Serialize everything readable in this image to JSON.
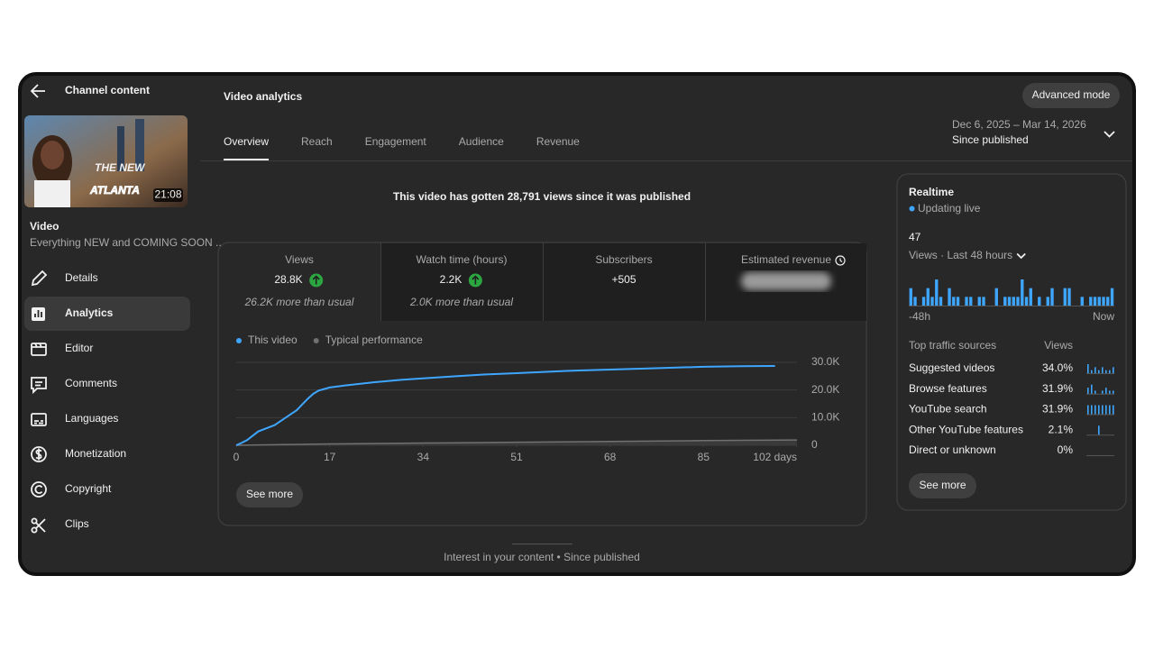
{
  "sidebar": {
    "back_label": "Channel content",
    "thumbnail": {
      "title_lines": [
        "THE NEW",
        "ATLANTA"
      ],
      "duration": "21:08"
    },
    "video_label": "Video",
    "video_title": "Everything NEW and COMING SOON ...",
    "nav": [
      {
        "label": "Details",
        "selected": false
      },
      {
        "label": "Analytics",
        "selected": true
      },
      {
        "label": "Editor",
        "selected": false
      },
      {
        "label": "Comments",
        "selected": false
      },
      {
        "label": "Languages",
        "selected": false
      },
      {
        "label": "Monetization",
        "selected": false
      },
      {
        "label": "Copyright",
        "selected": false
      },
      {
        "label": "Clips",
        "selected": false
      }
    ]
  },
  "header": {
    "title": "Video analytics",
    "button": "Advanced mode",
    "tabs": [
      {
        "label": "Overview",
        "active": true
      },
      {
        "label": "Reach",
        "active": false
      },
      {
        "label": "Engagement",
        "active": false
      },
      {
        "label": "Audience",
        "active": false
      },
      {
        "label": "Revenue",
        "active": false
      }
    ],
    "date_range": {
      "range": "Dec 6, 2025 – Mar 14, 2026",
      "label": "Since published"
    }
  },
  "headline": "This video has gotten 28,791 views since it was published",
  "metrics": [
    {
      "label": "Views",
      "value": "28.8K",
      "trend": "up",
      "note": "26.2K more than usual"
    },
    {
      "label": "Watch time (hours)",
      "value": "2.2K",
      "trend": "up",
      "note": "2.0K more than usual"
    },
    {
      "label": "Subscribers",
      "value": "+505"
    },
    {
      "label": "Estimated revenue",
      "hidden": true
    }
  ],
  "chart": {
    "type": "line",
    "series": [
      {
        "name": "This video",
        "color": "#3ea6ff",
        "x": [
          0,
          1,
          2,
          4,
          7,
          9,
          11,
          13,
          14,
          15,
          17,
          20,
          25,
          30,
          34,
          40,
          45,
          51,
          60,
          68,
          75,
          85,
          92,
          98
        ],
        "values": [
          0,
          900,
          1900,
          5000,
          7300,
          10000,
          12700,
          16800,
          18600,
          19800,
          20900,
          21700,
          22800,
          23700,
          24200,
          25000,
          25600,
          26100,
          26900,
          27400,
          27800,
          28400,
          28600,
          28700
        ]
      },
      {
        "name": "Typical performance",
        "color": "#717171",
        "x": [
          0,
          17,
          34,
          51,
          68,
          85,
          102
        ],
        "values": [
          0,
          500,
          800,
          1100,
          1400,
          1700,
          1900
        ]
      }
    ],
    "xlim": [
      0,
      102
    ],
    "xticks": [
      0,
      17,
      34,
      51,
      68,
      85,
      {
        "value": 102,
        "label": "102 days"
      }
    ],
    "ylim": [
      0,
      30000
    ],
    "yticks": [
      {
        "value": 0,
        "label": "0"
      },
      {
        "value": 10000,
        "label": "10.0K"
      },
      {
        "value": 20000,
        "label": "20.0K"
      },
      {
        "value": 30000,
        "label": "30.0K"
      }
    ],
    "grid": true,
    "button": "See more"
  },
  "realtime": {
    "title": "Realtime",
    "status": "Updating live",
    "count": "47",
    "period": "Views · Last 48 hours",
    "chart": {
      "type": "bar",
      "color": "#3ea6ff",
      "values": [
        2,
        1,
        0,
        1,
        2,
        1,
        3,
        1,
        0,
        2,
        1,
        1,
        0,
        1,
        1,
        0,
        1,
        1,
        0,
        0,
        2,
        0,
        1,
        1,
        1,
        1,
        3,
        1,
        2,
        0,
        1,
        0,
        1,
        2,
        0,
        0,
        2,
        2,
        0,
        0,
        1,
        0,
        1,
        1,
        1,
        1,
        1,
        2
      ],
      "start_label": "-48h",
      "end_label": "Now"
    },
    "table": {
      "headers": [
        "Top traffic sources",
        "Views"
      ],
      "rows": [
        {
          "source": "Suggested videos",
          "share": "34.0%",
          "spark": [
            3,
            1,
            2,
            1,
            2,
            1,
            1,
            2
          ]
        },
        {
          "source": "Browse features",
          "share": "31.9%",
          "spark": [
            2,
            3,
            1,
            0,
            1,
            2,
            1,
            1
          ]
        },
        {
          "source": "YouTube search",
          "share": "31.9%",
          "spark": [
            1,
            1,
            1,
            1,
            1,
            1,
            1,
            1
          ]
        },
        {
          "source": "Other YouTube features",
          "share": "2.1%",
          "spark": [
            0,
            0,
            0,
            1,
            0,
            0,
            0,
            0
          ]
        },
        {
          "source": "Direct or unknown",
          "share": "0%",
          "spark": [
            0,
            0,
            0,
            0,
            0,
            0,
            0,
            0
          ]
        }
      ]
    },
    "button": "See more"
  },
  "footer": "Interest in your content • Since published"
}
